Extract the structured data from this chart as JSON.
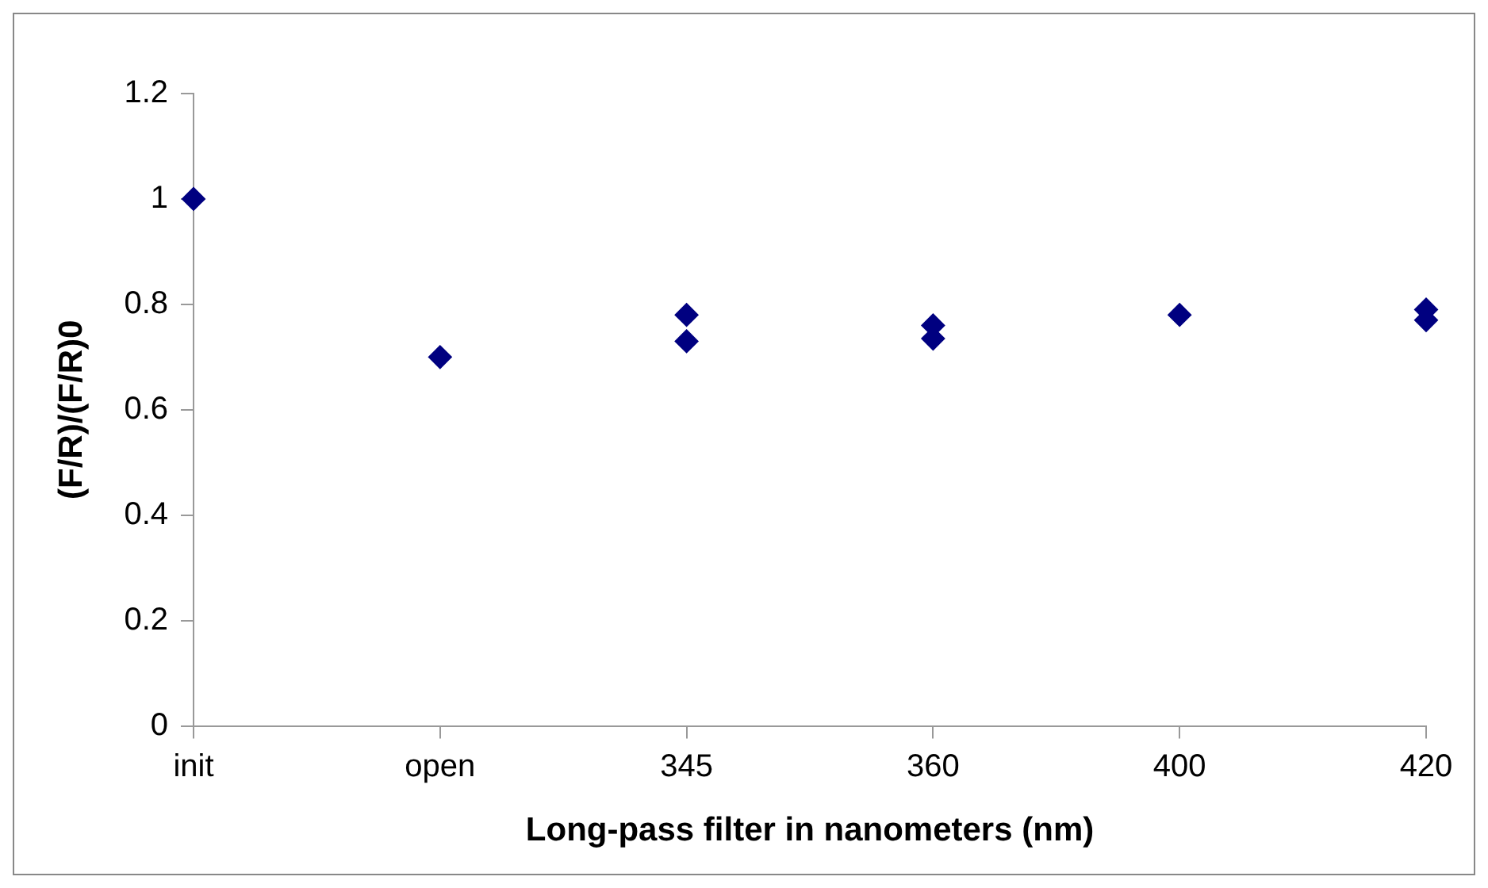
{
  "chart_data": {
    "type": "scatter",
    "xlabel": "Long-pass filter in nanometers (nm)",
    "ylabel": "(F/R)/(F/R)0",
    "categories": [
      "init",
      "open",
      "345",
      "360",
      "400",
      "420"
    ],
    "series": [
      {
        "color": "#000080",
        "values": [
          1.0,
          0.7,
          0.78,
          0.76,
          0.78,
          0.79
        ]
      },
      {
        "color": "#000080",
        "values": [
          null,
          null,
          0.73,
          0.735,
          null,
          0.77
        ]
      }
    ],
    "marker": "diamond",
    "ylim": [
      0,
      1.2
    ],
    "yticks": [
      0,
      0.2,
      0.4,
      0.6,
      0.8,
      1,
      1.2
    ],
    "grid": false,
    "legend": false
  }
}
